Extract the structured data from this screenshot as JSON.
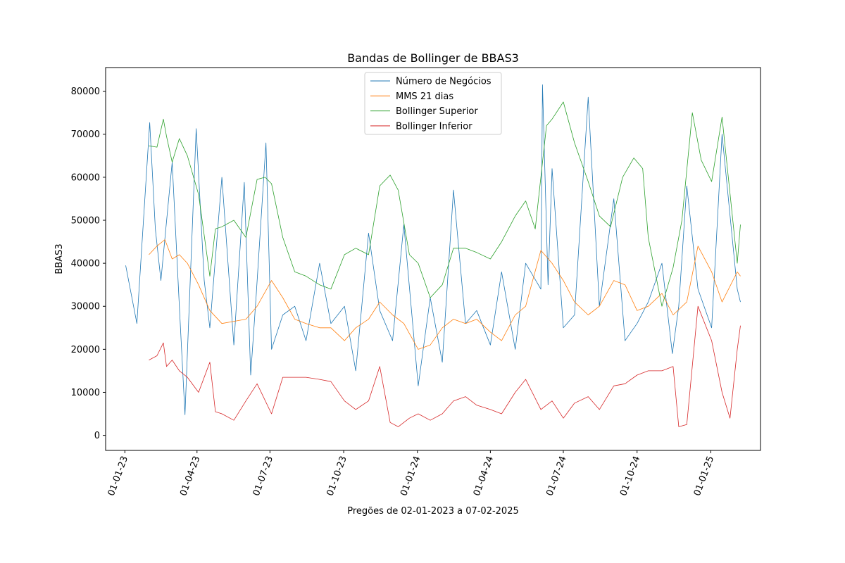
{
  "chart_data": {
    "type": "line",
    "title": "Bandas de Bollinger de BBAS3",
    "xlabel": "Pregões de 02-01-2023 a 07-02-2025",
    "ylabel": "BBAS3",
    "ylim": [
      -3500,
      85500
    ],
    "y_ticks": [
      "0",
      "10000",
      "20000",
      "30000",
      "40000",
      "50000",
      "60000",
      "70000",
      "80000"
    ],
    "x_ticks": [
      "01-01-23",
      "01-04-23",
      "01-07-23",
      "01-10-23",
      "01-01-24",
      "01-04-24",
      "01-07-24",
      "01-10-24",
      "01-01-25"
    ],
    "x_tick_dates": [
      "2023-01-01",
      "2023-04-01",
      "2023-07-01",
      "2023-10-01",
      "2024-01-01",
      "2024-04-01",
      "2024-07-01",
      "2024-10-01",
      "2025-01-01"
    ],
    "xlim": [
      "2022-12-08",
      "2025-03-04"
    ],
    "grid": false,
    "legend_position": "top-center",
    "series": [
      {
        "name": "Número de Negócios",
        "color": "#1f77b4",
        "x": [
          "2023-01-02",
          "2023-01-16",
          "2023-02-01",
          "2023-02-08",
          "2023-02-15",
          "2023-03-01",
          "2023-03-10",
          "2023-03-17",
          "2023-03-31",
          "2023-04-10",
          "2023-04-17",
          "2023-05-02",
          "2023-05-17",
          "2023-05-30",
          "2023-06-07",
          "2023-06-14",
          "2023-06-26",
          "2023-07-03",
          "2023-07-17",
          "2023-08-01",
          "2023-08-15",
          "2023-09-01",
          "2023-09-15",
          "2023-10-02",
          "2023-10-16",
          "2023-11-01",
          "2023-11-15",
          "2023-12-01",
          "2023-12-15",
          "2024-01-02",
          "2024-01-17",
          "2024-02-01",
          "2024-02-15",
          "2024-03-01",
          "2024-03-15",
          "2024-04-01",
          "2024-04-15",
          "2024-05-02",
          "2024-05-15",
          "2024-06-03",
          "2024-06-05",
          "2024-06-12",
          "2024-06-17",
          "2024-07-01",
          "2024-07-15",
          "2024-08-01",
          "2024-08-15",
          "2024-09-02",
          "2024-09-16",
          "2024-10-01",
          "2024-10-15",
          "2024-11-01",
          "2024-11-14",
          "2024-11-22",
          "2024-12-02",
          "2024-12-16",
          "2025-01-02",
          "2025-01-15",
          "2025-02-03",
          "2025-02-07"
        ],
        "values": [
          39500,
          26000,
          72700,
          48000,
          36000,
          63500,
          30000,
          4800,
          71300,
          36000,
          25000,
          60000,
          21000,
          58800,
          14000,
          33000,
          68000,
          20000,
          28000,
          30000,
          22000,
          40000,
          26000,
          30000,
          15000,
          47000,
          29000,
          22000,
          49000,
          11500,
          32000,
          17000,
          57000,
          26000,
          29000,
          21000,
          38000,
          20000,
          40000,
          34000,
          81500,
          35000,
          62000,
          25000,
          28000,
          78600,
          30000,
          55000,
          22000,
          26000,
          31000,
          40000,
          19000,
          30000,
          58000,
          34000,
          25000,
          70000,
          34000,
          31000
        ]
      },
      {
        "name": "MMS 21 dias",
        "color": "#ff7f0e",
        "x": [
          "2023-01-31",
          "2023-02-10",
          "2023-02-20",
          "2023-03-01",
          "2023-03-10",
          "2023-03-20",
          "2023-04-03",
          "2023-04-17",
          "2023-05-02",
          "2023-05-17",
          "2023-06-01",
          "2023-06-15",
          "2023-07-03",
          "2023-07-17",
          "2023-08-01",
          "2023-08-15",
          "2023-09-01",
          "2023-09-15",
          "2023-10-02",
          "2023-10-16",
          "2023-11-01",
          "2023-11-15",
          "2023-12-01",
          "2023-12-15",
          "2024-01-02",
          "2024-01-17",
          "2024-02-01",
          "2024-02-15",
          "2024-03-01",
          "2024-03-15",
          "2024-04-01",
          "2024-04-15",
          "2024-05-02",
          "2024-05-15",
          "2024-06-03",
          "2024-06-17",
          "2024-07-01",
          "2024-07-15",
          "2024-08-01",
          "2024-08-15",
          "2024-09-02",
          "2024-09-16",
          "2024-10-01",
          "2024-10-15",
          "2024-11-01",
          "2024-11-15",
          "2024-12-02",
          "2024-12-16",
          "2025-01-02",
          "2025-01-15",
          "2025-02-03",
          "2025-02-07"
        ],
        "values": [
          42000,
          44000,
          45500,
          41000,
          42000,
          40000,
          35000,
          29000,
          26000,
          26500,
          27000,
          30000,
          36000,
          32000,
          27000,
          26000,
          25000,
          25000,
          22000,
          25000,
          27000,
          31000,
          28000,
          26000,
          20000,
          21000,
          25000,
          27000,
          26000,
          27000,
          24000,
          22000,
          28000,
          30000,
          43000,
          40000,
          36000,
          31000,
          28000,
          30000,
          36000,
          35000,
          29000,
          30000,
          33000,
          28000,
          31000,
          44000,
          38000,
          31000,
          38000,
          37000
        ]
      },
      {
        "name": "Bollinger Superior",
        "color": "#2ca02c",
        "x": [
          "2023-01-31",
          "2023-02-10",
          "2023-02-18",
          "2023-02-22",
          "2023-03-01",
          "2023-03-10",
          "2023-03-20",
          "2023-04-03",
          "2023-04-17",
          "2023-04-24",
          "2023-05-02",
          "2023-05-17",
          "2023-06-01",
          "2023-06-15",
          "2023-06-25",
          "2023-07-03",
          "2023-07-17",
          "2023-08-01",
          "2023-08-15",
          "2023-09-01",
          "2023-09-15",
          "2023-10-02",
          "2023-10-16",
          "2023-11-01",
          "2023-11-15",
          "2023-11-28",
          "2023-12-08",
          "2023-12-22",
          "2024-01-02",
          "2024-01-17",
          "2024-02-01",
          "2024-02-15",
          "2024-03-01",
          "2024-03-15",
          "2024-04-01",
          "2024-04-15",
          "2024-05-02",
          "2024-05-15",
          "2024-05-27",
          "2024-06-10",
          "2024-06-17",
          "2024-07-01",
          "2024-07-15",
          "2024-08-01",
          "2024-08-15",
          "2024-08-29",
          "2024-09-13",
          "2024-09-27",
          "2024-10-08",
          "2024-10-15",
          "2024-11-01",
          "2024-11-15",
          "2024-11-26",
          "2024-12-09",
          "2024-12-20",
          "2025-01-02",
          "2025-01-15",
          "2025-02-03",
          "2025-02-07"
        ],
        "values": [
          67300,
          67000,
          73500,
          69500,
          63500,
          69000,
          65000,
          56000,
          37000,
          48000,
          48500,
          50000,
          46000,
          59500,
          60000,
          58500,
          46000,
          38000,
          37000,
          35000,
          34000,
          42000,
          43500,
          42000,
          58000,
          60500,
          57000,
          42000,
          40000,
          32000,
          35000,
          43500,
          43500,
          42500,
          41000,
          45000,
          51000,
          54500,
          48000,
          72000,
          73500,
          77500,
          68000,
          59000,
          51000,
          48500,
          60000,
          64500,
          62000,
          46000,
          30000,
          39000,
          50000,
          75000,
          64000,
          59000,
          74000,
          40000,
          49000
        ]
      },
      {
        "name": "Bollinger Inferior",
        "color": "#d62728",
        "x": [
          "2023-01-31",
          "2023-02-10",
          "2023-02-18",
          "2023-02-22",
          "2023-03-01",
          "2023-03-10",
          "2023-03-20",
          "2023-04-03",
          "2023-04-17",
          "2023-04-24",
          "2023-05-02",
          "2023-05-17",
          "2023-06-01",
          "2023-06-15",
          "2023-07-03",
          "2023-07-17",
          "2023-08-01",
          "2023-08-15",
          "2023-09-01",
          "2023-09-15",
          "2023-10-02",
          "2023-10-16",
          "2023-11-01",
          "2023-11-15",
          "2023-11-28",
          "2023-12-08",
          "2023-12-22",
          "2024-01-02",
          "2024-01-17",
          "2024-02-01",
          "2024-02-15",
          "2024-03-01",
          "2024-03-15",
          "2024-04-01",
          "2024-04-15",
          "2024-05-02",
          "2024-05-15",
          "2024-06-03",
          "2024-06-17",
          "2024-07-01",
          "2024-07-15",
          "2024-08-01",
          "2024-08-15",
          "2024-09-02",
          "2024-09-16",
          "2024-10-01",
          "2024-10-15",
          "2024-11-01",
          "2024-11-15",
          "2024-11-22",
          "2024-12-02",
          "2024-12-16",
          "2025-01-02",
          "2025-01-15",
          "2025-01-25",
          "2025-02-03",
          "2025-02-07"
        ],
        "values": [
          17500,
          18500,
          21500,
          16000,
          17500,
          15000,
          13500,
          10000,
          17000,
          5500,
          5000,
          3500,
          8000,
          12000,
          5000,
          13500,
          13500,
          13500,
          13000,
          12500,
          8000,
          6000,
          8000,
          16000,
          3000,
          2000,
          4000,
          5000,
          3500,
          5000,
          8000,
          9000,
          7000,
          6000,
          5000,
          10000,
          13000,
          6000,
          8000,
          4000,
          7500,
          9000,
          6000,
          11500,
          12000,
          14000,
          15000,
          15000,
          16000,
          2000,
          2500,
          30000,
          22000,
          10000,
          4000,
          20000,
          25500
        ]
      }
    ]
  }
}
